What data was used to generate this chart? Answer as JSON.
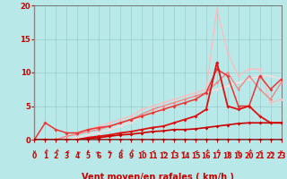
{
  "xlabel": "Vent moyen/en rafales ( km/h )",
  "xlim": [
    0,
    23
  ],
  "ylim": [
    0,
    20
  ],
  "yticks": [
    0,
    5,
    10,
    15,
    20
  ],
  "xticks": [
    0,
    1,
    2,
    3,
    4,
    5,
    6,
    7,
    8,
    9,
    10,
    11,
    12,
    13,
    14,
    15,
    16,
    17,
    18,
    19,
    20,
    21,
    22,
    23
  ],
  "bg_color": "#b8e8e8",
  "grid_color": "#99cccc",
  "text_color": "#cc0000",
  "series": [
    {
      "x": [
        0,
        1,
        2,
        3,
        4,
        5,
        6,
        7,
        8,
        9,
        10,
        11,
        12,
        13,
        14,
        15,
        16,
        17,
        18,
        19,
        20,
        21,
        22,
        23
      ],
      "y": [
        0,
        0,
        0,
        0,
        0,
        0,
        0,
        0,
        0,
        0,
        0,
        0,
        0,
        0,
        0,
        0,
        0,
        0,
        0,
        0,
        0,
        0,
        0,
        0
      ],
      "color": "#aa0000",
      "lw": 1.2,
      "marker": "D",
      "ms": 2.0
    },
    {
      "x": [
        0,
        1,
        2,
        3,
        4,
        5,
        6,
        7,
        8,
        9,
        10,
        11,
        12,
        13,
        14,
        15,
        16,
        17,
        18,
        19,
        20,
        21,
        22,
        23
      ],
      "y": [
        0,
        0,
        0,
        0,
        0,
        0.2,
        0.3,
        0.5,
        0.7,
        0.8,
        1.0,
        1.2,
        1.3,
        1.5,
        1.5,
        1.6,
        1.8,
        2.0,
        2.2,
        2.4,
        2.5,
        2.5,
        2.5,
        2.5
      ],
      "color": "#cc0000",
      "lw": 1.2,
      "marker": "D",
      "ms": 2.0
    },
    {
      "x": [
        0,
        1,
        2,
        3,
        4,
        5,
        6,
        7,
        8,
        9,
        10,
        11,
        12,
        13,
        14,
        15,
        16,
        17,
        18,
        19,
        20,
        21,
        22,
        23
      ],
      "y": [
        0,
        0,
        0,
        0,
        0,
        0.3,
        0.5,
        0.7,
        1.0,
        1.2,
        1.5,
        1.8,
        2.0,
        2.5,
        3.0,
        3.5,
        4.5,
        11.5,
        5.0,
        4.5,
        5.0,
        3.5,
        2.5,
        2.5
      ],
      "color": "#dd1111",
      "lw": 1.3,
      "marker": "D",
      "ms": 2.0
    },
    {
      "x": [
        0,
        1,
        2,
        3,
        4,
        5,
        6,
        7,
        8,
        9,
        10,
        11,
        12,
        13,
        14,
        15,
        16,
        17,
        18,
        19,
        20,
        21,
        22,
        23
      ],
      "y": [
        0,
        2.5,
        1.5,
        1.0,
        1.0,
        1.5,
        1.8,
        2.0,
        2.5,
        3.0,
        3.5,
        4.0,
        4.5,
        5.0,
        5.5,
        6.0,
        7.0,
        10.5,
        9.5,
        5.0,
        5.0,
        9.5,
        7.5,
        9.0
      ],
      "color": "#ee3333",
      "lw": 1.1,
      "marker": "D",
      "ms": 2.0
    },
    {
      "x": [
        0,
        1,
        2,
        3,
        4,
        5,
        6,
        7,
        8,
        9,
        10,
        11,
        12,
        13,
        14,
        15,
        16,
        17,
        18,
        19,
        20,
        21,
        22,
        23
      ],
      "y": [
        0,
        0,
        0,
        0.5,
        0.8,
        1.2,
        1.5,
        2.0,
        2.5,
        3.0,
        3.8,
        4.5,
        5.0,
        5.5,
        6.0,
        6.5,
        7.0,
        8.5,
        10.0,
        7.5,
        9.5,
        7.5,
        6.0,
        8.5
      ],
      "color": "#ee8888",
      "lw": 1.0,
      "marker": "D",
      "ms": 1.8
    },
    {
      "x": [
        0,
        1,
        2,
        3,
        4,
        5,
        6,
        7,
        8,
        9,
        10,
        11,
        12,
        13,
        14,
        15,
        16,
        17,
        18,
        19,
        20,
        21,
        22,
        23
      ],
      "y": [
        0,
        0,
        0,
        0.5,
        1.0,
        1.5,
        2.0,
        2.5,
        3.0,
        3.5,
        4.5,
        5.0,
        5.5,
        6.0,
        6.5,
        7.0,
        7.5,
        19.5,
        13.0,
        9.5,
        10.5,
        10.5,
        5.5,
        6.0
      ],
      "color": "#ffbbbb",
      "lw": 0.9,
      "marker": "D",
      "ms": 1.8
    },
    {
      "x": [
        0,
        1,
        2,
        3,
        4,
        5,
        6,
        7,
        8,
        9,
        10,
        11,
        12,
        13,
        14,
        15,
        16,
        17,
        18,
        19,
        20,
        21,
        22,
        23
      ],
      "y": [
        0,
        0,
        0,
        0,
        0.3,
        0.7,
        1.0,
        1.5,
        2.0,
        2.5,
        3.5,
        4.0,
        4.8,
        5.5,
        6.0,
        6.5,
        7.0,
        7.5,
        8.0,
        8.5,
        9.0,
        9.5,
        9.5,
        9.0
      ],
      "color": "#ffdddd",
      "lw": 0.9,
      "marker": "D",
      "ms": 1.5
    }
  ],
  "arrow_angles": [
    180,
    225,
    225,
    270,
    315,
    0,
    45,
    180,
    225,
    225,
    270,
    270,
    315,
    0,
    45,
    270,
    225,
    225,
    315,
    180,
    225,
    270,
    315,
    180
  ],
  "tick_label_fontsize": 5.5,
  "xlabel_fontsize": 7,
  "ytick_fontsize": 6
}
